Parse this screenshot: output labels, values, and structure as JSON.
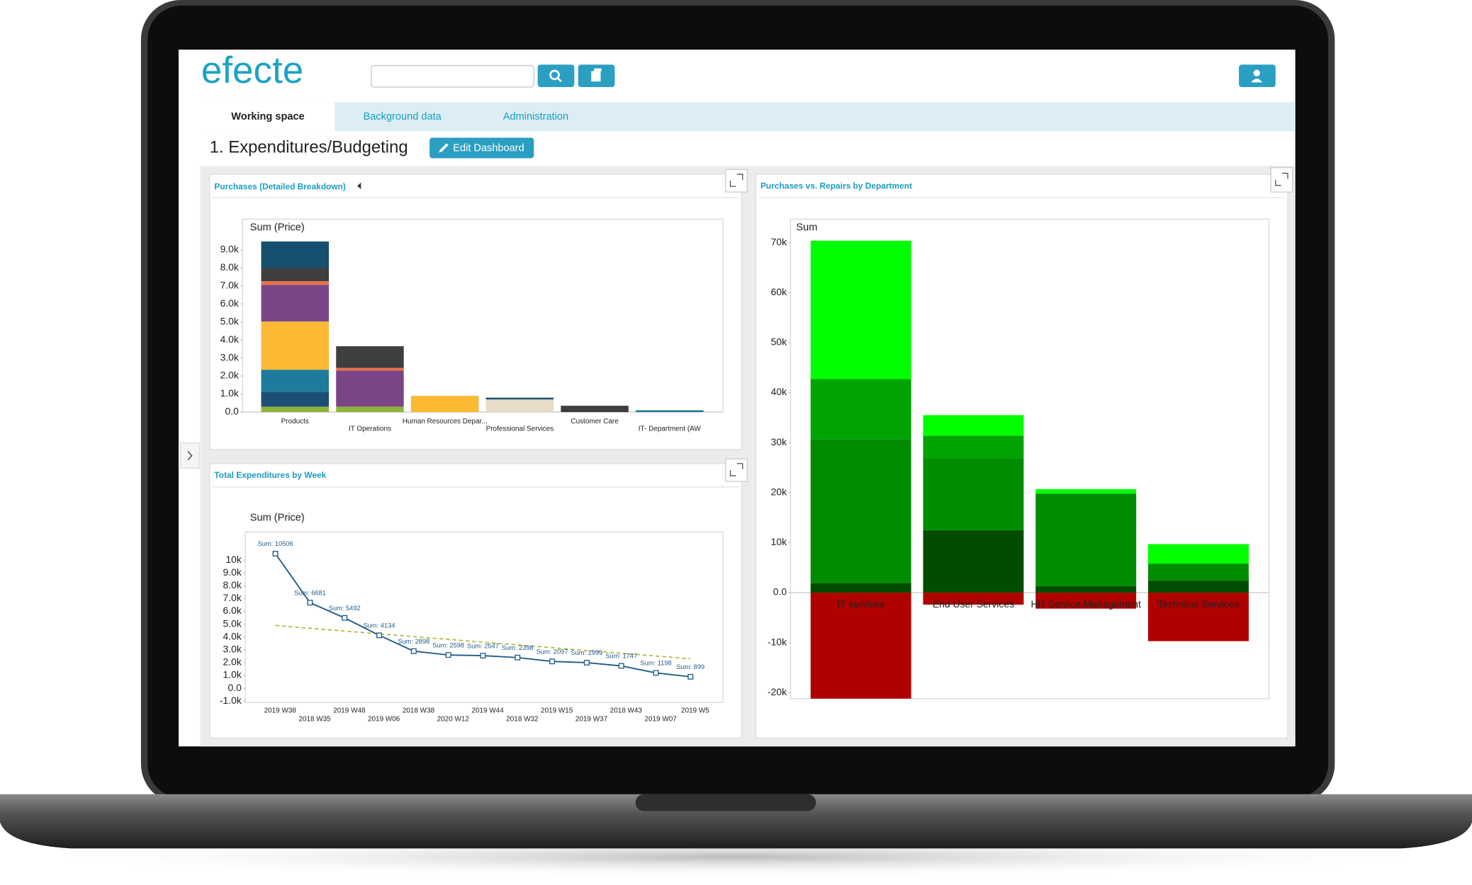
{
  "header": {
    "logo": "efecte"
  },
  "tabs": [
    "Working space",
    "Background data",
    "Administration"
  ],
  "dashboard": {
    "title": "1. Expenditures/Budgeting",
    "edit_button": "Edit Dashboard"
  },
  "chart_data": [
    {
      "type": "bar",
      "stacked": true,
      "title": "Purchases (Detailed Breakdown)",
      "ylabel": "Sum (Price)",
      "categories": [
        "Products",
        "IT Operations",
        "Human Resources Depar...",
        "Professional Services",
        "Customer Care",
        "IT- Department (AW"
      ],
      "series": [
        {
          "color": "#8db33a",
          "values": [
            300,
            300,
            null,
            null,
            null,
            null
          ]
        },
        {
          "color": "#1c4f73",
          "values": [
            800,
            null,
            null,
            null,
            null,
            null
          ]
        },
        {
          "color": "#1e7b9b",
          "values": [
            1250,
            null,
            null,
            null,
            null,
            100
          ]
        },
        {
          "color": "#fbb934",
          "values": [
            2670,
            null,
            900,
            null,
            null,
            null
          ]
        },
        {
          "color": "#e6dcc8",
          "values": [
            null,
            null,
            null,
            700,
            null,
            null
          ]
        },
        {
          "color": "#7a4586",
          "values": [
            2040,
            2000,
            null,
            null,
            null,
            null
          ]
        },
        {
          "color": "#e8734a",
          "values": [
            200,
            150,
            null,
            null,
            null,
            null
          ]
        },
        {
          "color": "#3e3e40",
          "values": [
            730,
            1200,
            null,
            null,
            350,
            null
          ]
        },
        {
          "color": "#17506e",
          "values": [
            1470,
            null,
            null,
            100,
            null,
            null
          ]
        }
      ],
      "ylim": [
        0,
        10700
      ],
      "yticks": [
        {
          "value": 0,
          "label": "0.0"
        },
        {
          "value": 1000,
          "label": "1.0k"
        },
        {
          "value": 2000,
          "label": "2.0k"
        },
        {
          "value": 3000,
          "label": "3.0k"
        },
        {
          "value": 4000,
          "label": "4.0k"
        },
        {
          "value": 5000,
          "label": "5.0k"
        },
        {
          "value": 6000,
          "label": "6.0k"
        },
        {
          "value": 7000,
          "label": "7.0k"
        },
        {
          "value": 8000,
          "label": "8.0k"
        },
        {
          "value": 9000,
          "label": "9.0k"
        }
      ],
      "grid": false
    },
    {
      "type": "line",
      "title": "Total Expenditures by Week",
      "ylabel": "Sum (Price)",
      "categories": [
        "2019 W38",
        "2018 W35",
        "2019 W48",
        "2019 W06",
        "2018 W38",
        "2020 W12",
        "2019 W44",
        "2018 W32",
        "2019 W15",
        "2019 W37",
        "2018 W43",
        "2019 W07",
        "2019 W5"
      ],
      "series": [
        {
          "color": "#1f5a85",
          "values": [
            10506,
            6681,
            5492,
            4134,
            2898,
            2598,
            2547,
            2398,
            2097,
            1999,
            1747,
            1198,
            899
          ],
          "value_labels": [
            "Sum: 10506",
            "Sum: 6681",
            "Sum: 5492",
            "Sum: 4134",
            "Sum: 2898",
            "Sum: 2598",
            "Sum: 2547",
            "Sum: 2398",
            "Sum: 2097",
            "Sum: 1999",
            "Sum: 1747",
            "Sum: 1198",
            "Sum: 899"
          ]
        }
      ],
      "trend": {
        "color": "#b3b02e",
        "start": 4900,
        "end": 2300
      },
      "ylim": [
        -1100,
        12200
      ],
      "yticks": [
        {
          "value": -1000,
          "label": "-1.0k"
        },
        {
          "value": 0,
          "label": "0.0"
        },
        {
          "value": 1000,
          "label": "1.0k"
        },
        {
          "value": 2000,
          "label": "2.0k"
        },
        {
          "value": 3000,
          "label": "3.0k"
        },
        {
          "value": 4000,
          "label": "4.0k"
        },
        {
          "value": 5000,
          "label": "5.0k"
        },
        {
          "value": 6000,
          "label": "6.0k"
        },
        {
          "value": 7000,
          "label": "7.0k"
        },
        {
          "value": 8000,
          "label": "8.0k"
        },
        {
          "value": 9000,
          "label": "9.0k"
        },
        {
          "value": 10000,
          "label": "10k"
        }
      ],
      "grid": false
    },
    {
      "type": "bar",
      "stacked": true,
      "title": "Purchases vs. Repairs by Department",
      "ylabel": "Sum",
      "categories": [
        "IT services",
        "End User Services",
        "HR Service Management",
        "Technical Services"
      ],
      "series": [
        {
          "color": "#004d00",
          "values": [
            1900,
            12500,
            1300,
            2400
          ]
        },
        {
          "color": "#008c00",
          "values": [
            28800,
            14400,
            18500,
            3400
          ]
        },
        {
          "color": "#00a400",
          "values": [
            12000,
            4500,
            null,
            null
          ]
        },
        {
          "color": "#00ff00",
          "values": [
            27700,
            4100,
            900,
            3900
          ]
        },
        {
          "color": "#b00000",
          "values": [
            -21200,
            -2400,
            -3200,
            -9700
          ]
        }
      ],
      "ylim": [
        -21200,
        74700
      ],
      "yticks": [
        {
          "value": -20000,
          "label": "-20k"
        },
        {
          "value": -10000,
          "label": "-10k"
        },
        {
          "value": 0,
          "label": "0.0"
        },
        {
          "value": 10000,
          "label": "10k"
        },
        {
          "value": 20000,
          "label": "20k"
        },
        {
          "value": 30000,
          "label": "30k"
        },
        {
          "value": 40000,
          "label": "40k"
        },
        {
          "value": 50000,
          "label": "50k"
        },
        {
          "value": 60000,
          "label": "60k"
        },
        {
          "value": 70000,
          "label": "70k"
        }
      ],
      "grid": false
    }
  ]
}
